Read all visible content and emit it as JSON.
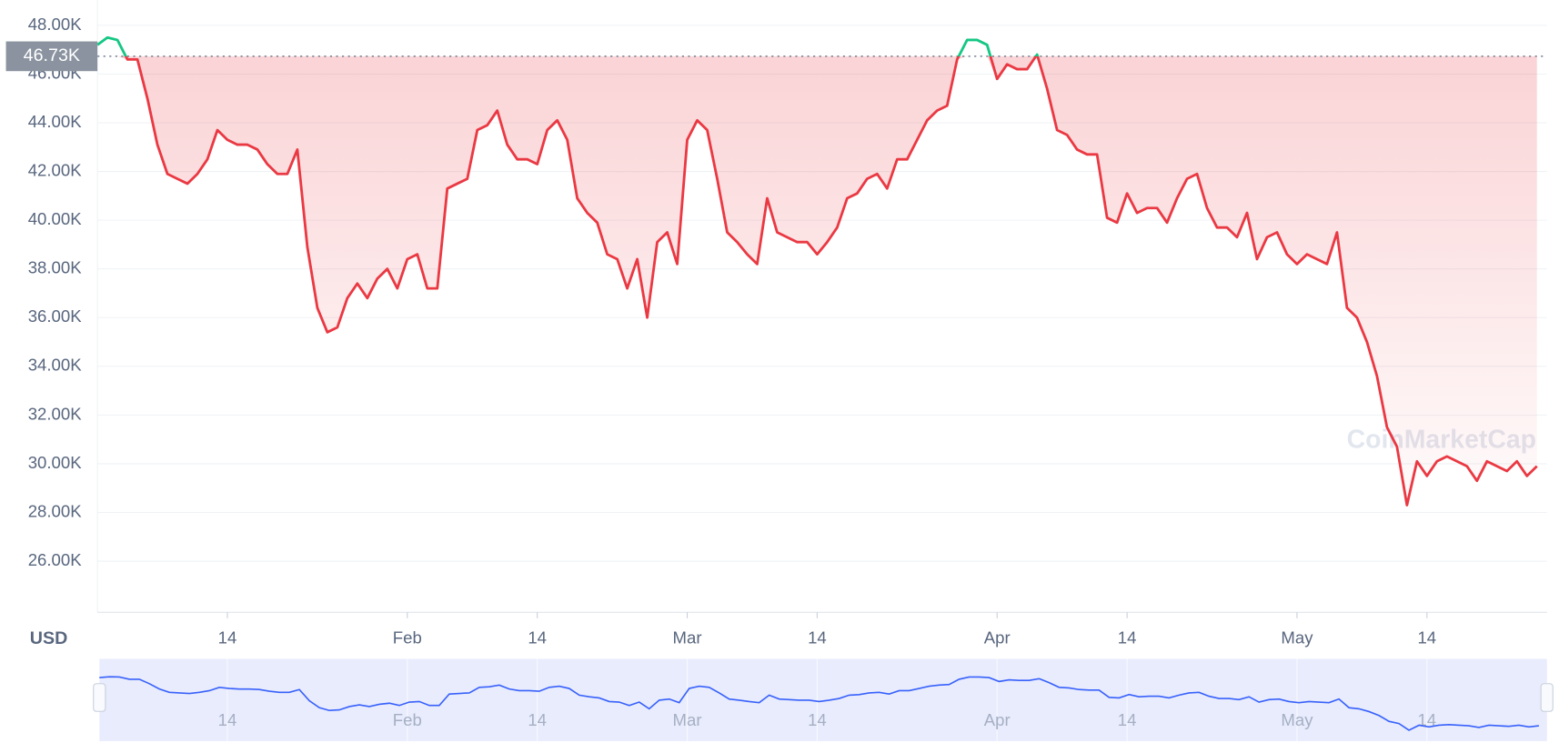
{
  "chart_data": {
    "type": "line",
    "currency": "USD",
    "watermark": "CoinMarketCap",
    "reference": {
      "value": 46730,
      "label": "46.73K"
    },
    "up_color": "#16c784",
    "down_color": "#ea3943",
    "grid": true,
    "xlim": [
      0,
      145
    ],
    "ylim": [
      23900,
      49000
    ],
    "yticks": [
      {
        "value": 26000,
        "label": "26.00K"
      },
      {
        "value": 28000,
        "label": "28.00K"
      },
      {
        "value": 30000,
        "label": "30.00K"
      },
      {
        "value": 32000,
        "label": "32.00K"
      },
      {
        "value": 34000,
        "label": "34.00K"
      },
      {
        "value": 36000,
        "label": "36.00K"
      },
      {
        "value": 38000,
        "label": "38.00K"
      },
      {
        "value": 40000,
        "label": "40.00K"
      },
      {
        "value": 42000,
        "label": "42.00K"
      },
      {
        "value": 44000,
        "label": "44.00K"
      },
      {
        "value": 46000,
        "label": "46.00K"
      },
      {
        "value": 48000,
        "label": "48.00K"
      }
    ],
    "xticks": [
      {
        "value": 13,
        "label": "14"
      },
      {
        "value": 31,
        "label": "Feb"
      },
      {
        "value": 44,
        "label": "14"
      },
      {
        "value": 59,
        "label": "Mar"
      },
      {
        "value": 72,
        "label": "14"
      },
      {
        "value": 90,
        "label": "Apr"
      },
      {
        "value": 103,
        "label": "14"
      },
      {
        "value": 120,
        "label": "May"
      },
      {
        "value": 133,
        "label": "14"
      }
    ],
    "x": [
      0,
      1,
      2,
      3,
      4,
      5,
      6,
      7,
      8,
      9,
      10,
      11,
      12,
      13,
      14,
      15,
      16,
      17,
      18,
      19,
      20,
      21,
      22,
      23,
      24,
      25,
      26,
      27,
      28,
      29,
      30,
      31,
      32,
      33,
      34,
      35,
      36,
      37,
      38,
      39,
      40,
      41,
      42,
      43,
      44,
      45,
      46,
      47,
      48,
      49,
      50,
      51,
      52,
      53,
      54,
      55,
      56,
      57,
      58,
      59,
      60,
      61,
      62,
      63,
      64,
      65,
      66,
      67,
      68,
      69,
      70,
      71,
      72,
      73,
      74,
      75,
      76,
      77,
      78,
      79,
      80,
      81,
      82,
      83,
      84,
      85,
      86,
      87,
      88,
      89,
      90,
      91,
      92,
      93,
      94,
      95,
      96,
      97,
      98,
      99,
      100,
      101,
      102,
      103,
      104,
      105,
      106,
      107,
      108,
      109,
      110,
      111,
      112,
      113,
      114,
      115,
      116,
      117,
      118,
      119,
      120,
      121,
      122,
      123,
      124,
      125,
      126,
      127,
      128,
      129,
      130,
      131,
      132,
      133,
      134,
      135,
      136,
      137,
      138,
      139,
      140,
      141,
      142,
      143,
      144
    ],
    "values": [
      47200,
      47500,
      47400,
      46600,
      46600,
      45000,
      43100,
      41900,
      41700,
      41500,
      41900,
      42500,
      43700,
      43300,
      43100,
      43100,
      42900,
      42300,
      41900,
      41900,
      42900,
      38900,
      36400,
      35400,
      35600,
      36800,
      37400,
      36800,
      37600,
      38000,
      37200,
      38400,
      38600,
      37200,
      37200,
      41300,
      41500,
      41700,
      43700,
      43900,
      44500,
      43100,
      42500,
      42500,
      42300,
      43700,
      44100,
      43300,
      40900,
      40300,
      39900,
      38600,
      38400,
      37200,
      38400,
      36000,
      39100,
      39500,
      38200,
      43300,
      44100,
      43700,
      41700,
      39500,
      39100,
      38600,
      38200,
      40900,
      39500,
      39300,
      39100,
      39100,
      38600,
      39100,
      39700,
      40900,
      41100,
      41700,
      41900,
      41300,
      42500,
      42500,
      43300,
      44100,
      44500,
      44700,
      46600,
      47400,
      47400,
      47200,
      45800,
      46400,
      46200,
      46200,
      46800,
      45400,
      43700,
      43500,
      42900,
      42700,
      42700,
      40100,
      39900,
      41100,
      40300,
      40500,
      40500,
      39900,
      40900,
      41700,
      41900,
      40500,
      39700,
      39700,
      39300,
      40300,
      38400,
      39300,
      39500,
      38600,
      38200,
      38600,
      38400,
      38200,
      39500,
      36400,
      36000,
      35000,
      33600,
      31500,
      30700,
      28300,
      30100,
      29500,
      30100,
      30300,
      30100,
      29900,
      29300,
      30100,
      29900,
      29700,
      30100,
      29500,
      29900
    ]
  }
}
